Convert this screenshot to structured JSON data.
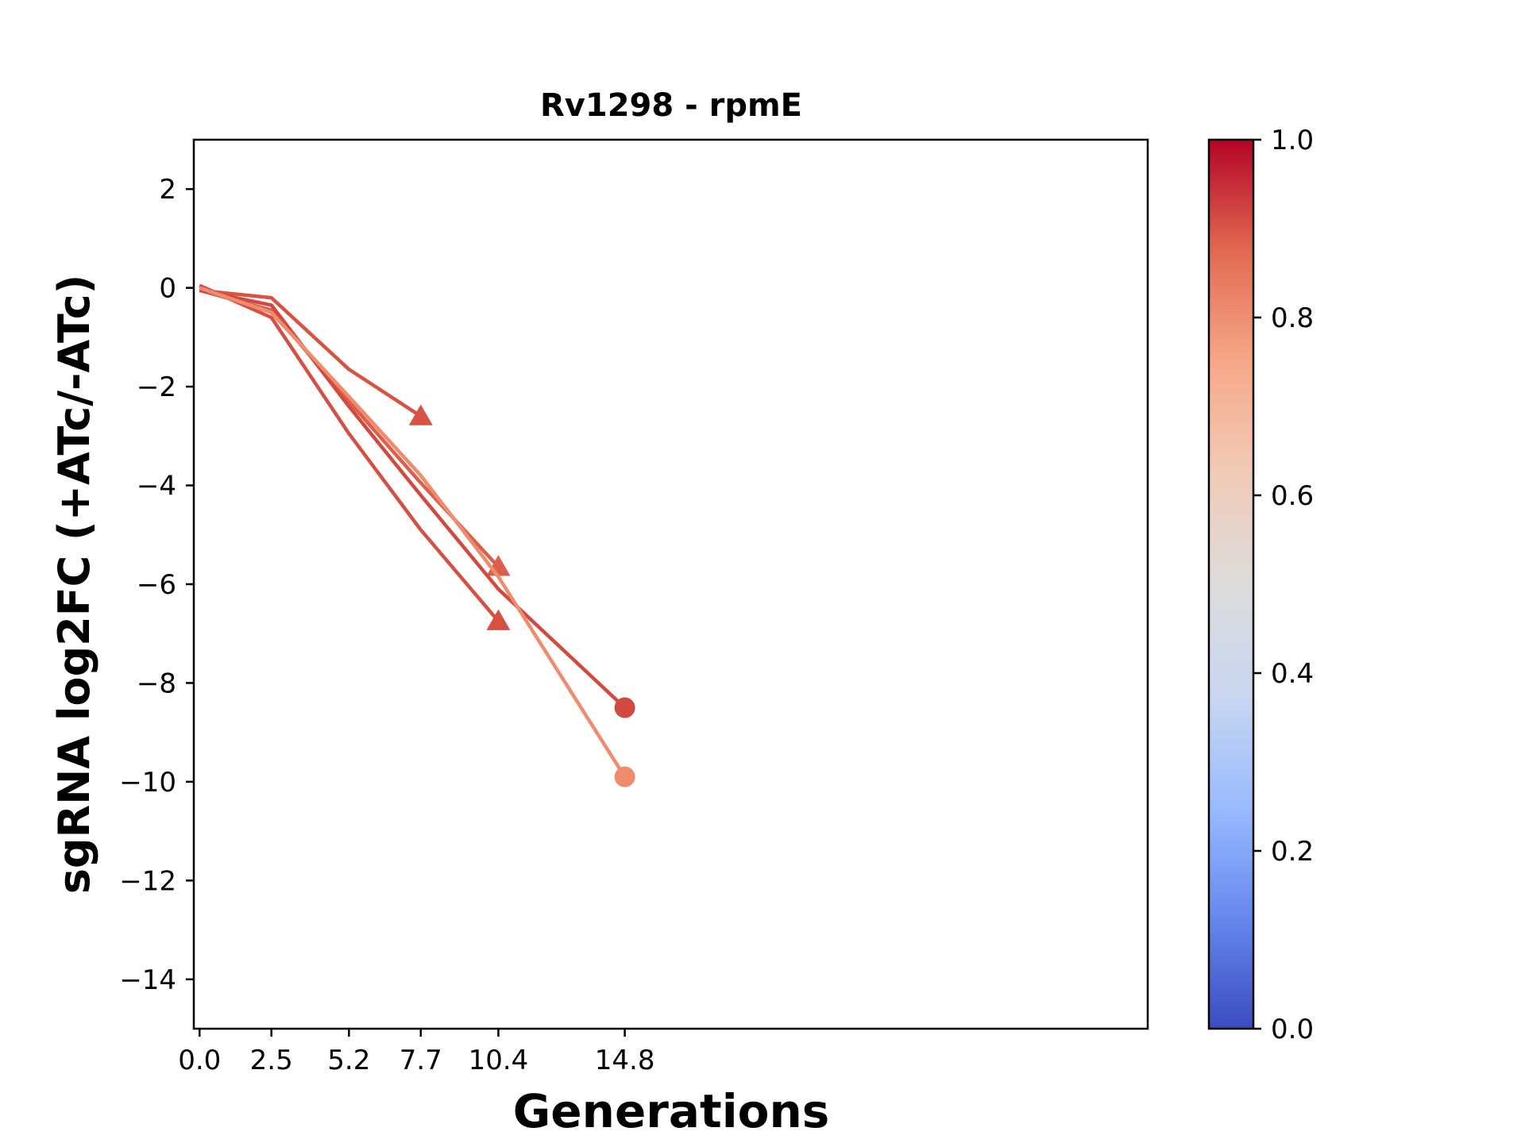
{
  "chart_data": {
    "type": "line",
    "title": "Rv1298 - rpmE",
    "xlabel": "Generations",
    "ylabel": "sgRNA log2FC (+ATc/-ATc)",
    "xlim": [
      -0.2,
      33.0
    ],
    "ylim": [
      -15,
      3
    ],
    "x_ticks": [
      0.0,
      2.5,
      5.2,
      7.7,
      10.4,
      14.8
    ],
    "x_tick_labels": [
      "0.0",
      "2.5",
      "5.2",
      "7.7",
      "10.4",
      "14.8"
    ],
    "y_ticks": [
      2,
      0,
      -2,
      -4,
      -6,
      -8,
      -10,
      -12,
      -14
    ],
    "y_tick_labels": [
      "2",
      "0",
      "−2",
      "−4",
      "−6",
      "−8",
      "−10",
      "−12",
      "−14"
    ],
    "grid": false,
    "legend": "none",
    "colorbar": {
      "colormap": "coolwarm",
      "range": [
        0.0,
        1.0
      ],
      "ticks": [
        0.0,
        0.2,
        0.4,
        0.6,
        0.8,
        1.0
      ],
      "tick_labels": [
        "0.0",
        "0.2",
        "0.4",
        "0.6",
        "0.8",
        "1.0"
      ],
      "stops": [
        "#3b4cc0",
        "#6788ee",
        "#9abbff",
        "#c9d7f0",
        "#dddcdc",
        "#f2cbb7",
        "#f7a889",
        "#e26952",
        "#b40426"
      ]
    },
    "series": [
      {
        "x": [
          0.0,
          2.5,
          5.2,
          7.7
        ],
        "y": [
          -0.05,
          -0.2,
          -1.65,
          -2.6
        ],
        "marker": "triangle",
        "color": "#d75445"
      },
      {
        "x": [
          0.0,
          2.5,
          5.2,
          7.7,
          10.4
        ],
        "y": [
          -0.05,
          -0.45,
          -2.3,
          -3.95,
          -5.65
        ],
        "marker": "triangle",
        "color": "#dd5f4b"
      },
      {
        "x": [
          0.0,
          2.5,
          5.2,
          7.7,
          10.4
        ],
        "y": [
          0.05,
          -0.6,
          -2.95,
          -4.9,
          -6.75
        ],
        "marker": "triangle",
        "color": "#d55042"
      },
      {
        "x": [
          0.0,
          2.5,
          5.2,
          7.7,
          10.4,
          14.8
        ],
        "y": [
          -0.05,
          -0.35,
          -2.4,
          -4.2,
          -6.1,
          -8.5
        ],
        "marker": "circle",
        "color": "#d1493f"
      },
      {
        "x": [
          0.0,
          2.5,
          5.2,
          7.7,
          10.4,
          14.8
        ],
        "y": [
          0.0,
          -0.5,
          -2.2,
          -3.8,
          -5.85,
          -9.9
        ],
        "marker": "circle",
        "color": "#f08b6e"
      }
    ]
  }
}
